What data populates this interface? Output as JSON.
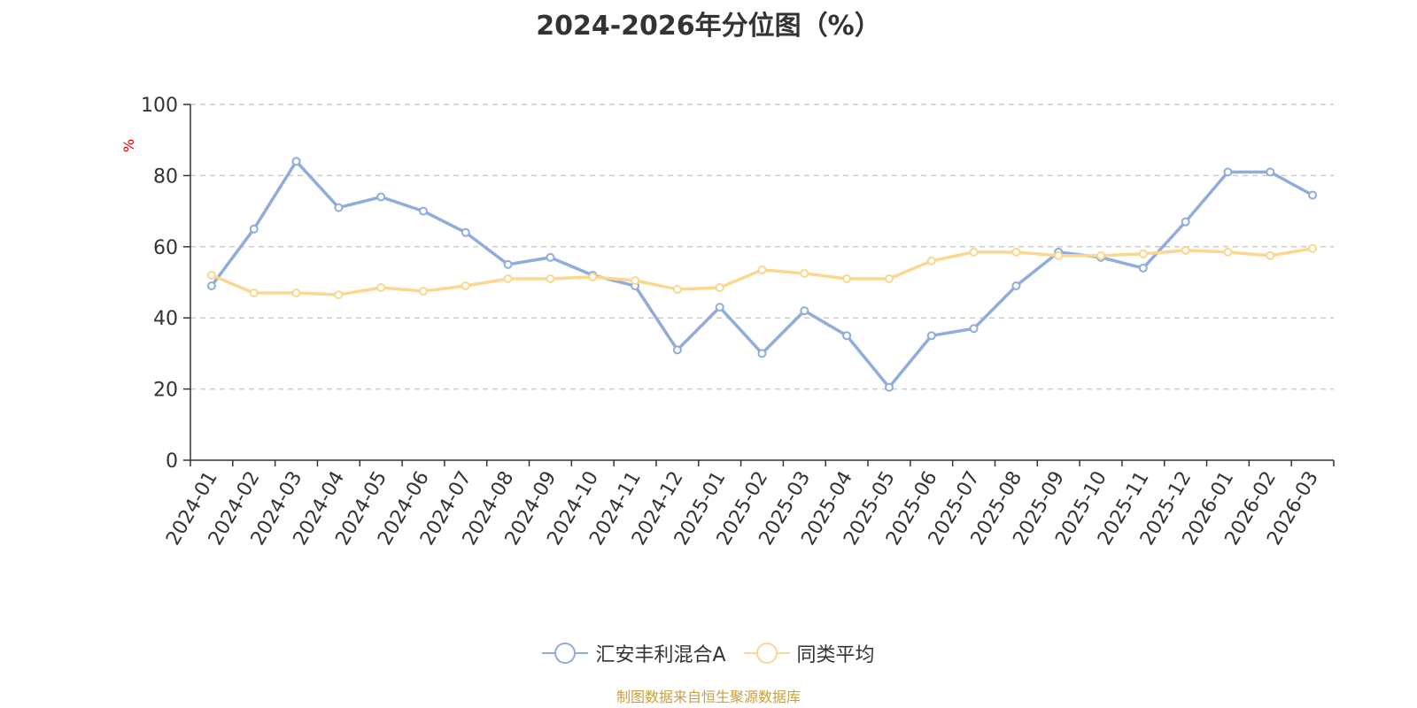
{
  "title": "2024-2026年分位图（%）",
  "source_text": "制图数据来自恒生聚源数据库",
  "colors": {
    "series1": "#8fadda",
    "series2": "#fbd78f",
    "grid": "#cccccc",
    "axis": "#333333",
    "ylabel": "#e60000",
    "source": "#c9a13e"
  },
  "chart_data": {
    "type": "line",
    "title": "2024-2026年分位图（%）",
    "ylabel": "%",
    "xlabel": "",
    "ylim": [
      0,
      100
    ],
    "yticks": [
      0,
      20,
      40,
      60,
      80,
      100
    ],
    "grid": true,
    "legend_position": "bottom-center",
    "categories": [
      "2024-01",
      "2024-02",
      "2024-03",
      "2024-04",
      "2024-05",
      "2024-06",
      "2024-07",
      "2024-08",
      "2024-09",
      "2024-10",
      "2024-11",
      "2024-12",
      "2025-01",
      "2025-02",
      "2025-03",
      "2025-04",
      "2025-05",
      "2025-06",
      "2025-07",
      "2025-08",
      "2025-09",
      "2025-10",
      "2025-11",
      "2025-12",
      "2026-01",
      "2026-02",
      "2026-03"
    ],
    "series": [
      {
        "name": "汇安丰利混合A",
        "values": [
          49,
          65,
          84,
          71,
          74,
          70,
          64,
          55,
          57,
          52,
          49,
          31,
          43,
          30,
          42,
          35,
          20.5,
          35,
          37,
          49,
          58.5,
          57,
          54,
          67,
          81,
          81,
          74.5
        ]
      },
      {
        "name": "同类平均",
        "values": [
          52,
          47,
          47,
          46.5,
          48.5,
          47.5,
          49,
          51,
          51,
          51.5,
          50.5,
          48,
          48.5,
          53.5,
          52.5,
          51,
          51,
          56,
          58.5,
          58.5,
          57.5,
          57.5,
          58,
          59,
          58.5,
          57.5,
          59.5
        ]
      }
    ]
  }
}
